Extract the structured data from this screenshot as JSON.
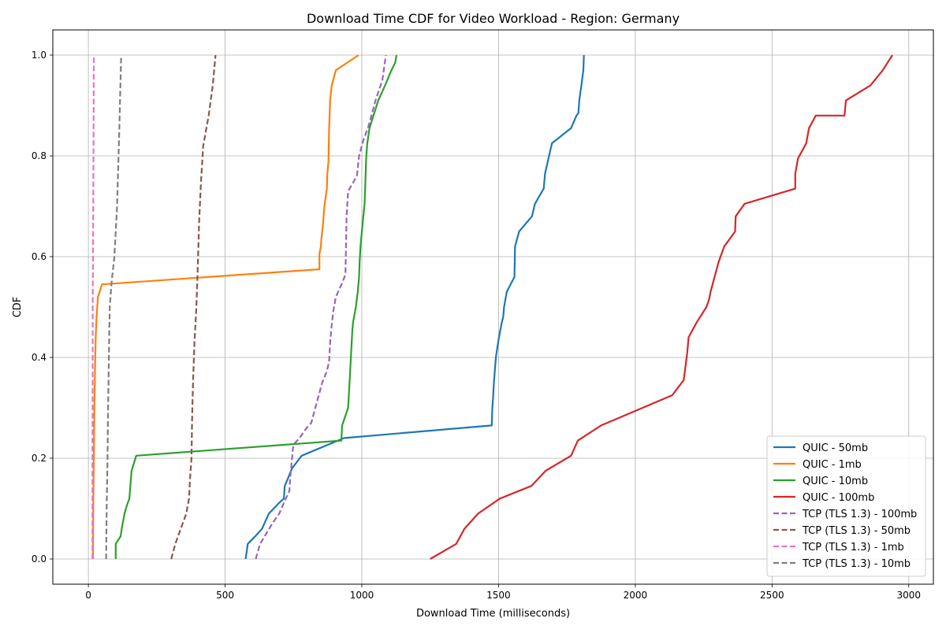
{
  "chart_data": {
    "type": "line",
    "title": "Download Time CDF for Video Workload - Region: Germany",
    "xlabel": "Download Time (milliseconds)",
    "ylabel": "CDF",
    "xlim": [
      -130,
      3090
    ],
    "ylim": [
      -0.05,
      1.05
    ],
    "xticks": [
      0,
      500,
      1000,
      1500,
      2000,
      2500,
      3000
    ],
    "yticks": [
      0.0,
      0.2,
      0.4,
      0.6,
      0.8,
      1.0
    ],
    "xtick_labels": [
      "0",
      "500",
      "1000",
      "1500",
      "2000",
      "2500",
      "3000"
    ],
    "ytick_labels": [
      "0.0",
      "0.2",
      "0.4",
      "0.6",
      "0.8",
      "1.0"
    ],
    "grid": true,
    "legend_position": "lower-right",
    "series": [
      {
        "name": "QUIC - 50mb",
        "color": "#1f77b4",
        "style": "solid",
        "x": [
          575,
          583,
          610,
          635,
          660,
          695,
          715,
          718,
          730,
          745,
          780,
          935,
          1475,
          1477,
          1480,
          1483,
          1490,
          1500,
          1505,
          1512,
          1517,
          1520,
          1530,
          1558,
          1560,
          1575,
          1622,
          1633,
          1665,
          1670,
          1695,
          1765,
          1785,
          1792,
          1795,
          1803,
          1810,
          1812
        ],
        "y": [
          0.0,
          0.03,
          0.045,
          0.06,
          0.09,
          0.11,
          0.12,
          0.145,
          0.16,
          0.18,
          0.205,
          0.24,
          0.265,
          0.3,
          0.32,
          0.35,
          0.4,
          0.435,
          0.45,
          0.47,
          0.48,
          0.5,
          0.53,
          0.56,
          0.62,
          0.65,
          0.68,
          0.705,
          0.735,
          0.765,
          0.825,
          0.855,
          0.88,
          0.885,
          0.91,
          0.94,
          0.97,
          1.0
        ]
      },
      {
        "name": "QUIC - 1mb",
        "color": "#ff7f0e",
        "style": "solid",
        "x": [
          17,
          17,
          18,
          20,
          22,
          25,
          27,
          30,
          35,
          50,
          845,
          845,
          850,
          852,
          858,
          863,
          872,
          874,
          878,
          880,
          884,
          890,
          905,
          988
        ],
        "y": [
          0.0,
          0.03,
          0.1,
          0.2,
          0.3,
          0.4,
          0.445,
          0.48,
          0.52,
          0.545,
          0.575,
          0.605,
          0.62,
          0.635,
          0.665,
          0.7,
          0.735,
          0.765,
          0.79,
          0.85,
          0.91,
          0.94,
          0.97,
          1.0
        ]
      },
      {
        "name": "QUIC - 10mb",
        "color": "#2ca02c",
        "style": "solid",
        "x": [
          100,
          100,
          118,
          122,
          132,
          140,
          150,
          158,
          175,
          925,
          928,
          950,
          955,
          960,
          965,
          968,
          978,
          985,
          990,
          992,
          995,
          1000,
          1010,
          1012,
          1014,
          1016,
          1020,
          1028,
          1060,
          1085,
          1108,
          1122,
          1127
        ],
        "y": [
          0.0,
          0.03,
          0.045,
          0.06,
          0.09,
          0.105,
          0.12,
          0.175,
          0.205,
          0.235,
          0.265,
          0.3,
          0.35,
          0.4,
          0.45,
          0.47,
          0.5,
          0.53,
          0.56,
          0.59,
          0.62,
          0.65,
          0.705,
          0.735,
          0.765,
          0.795,
          0.825,
          0.855,
          0.91,
          0.94,
          0.97,
          0.985,
          1.0
        ]
      },
      {
        "name": "QUIC - 100mb",
        "color": "#d62728",
        "style": "solid",
        "x": [
          1250,
          1345,
          1375,
          1425,
          1505,
          1620,
          1672,
          1765,
          1790,
          1875,
          2135,
          2177,
          2190,
          2195,
          2225,
          2260,
          2270,
          2275,
          2290,
          2305,
          2325,
          2365,
          2367,
          2400,
          2585,
          2585,
          2595,
          2625,
          2635,
          2660,
          2765,
          2770,
          2860,
          2905,
          2940
        ],
        "y": [
          0.0,
          0.03,
          0.06,
          0.09,
          0.12,
          0.145,
          0.175,
          0.205,
          0.235,
          0.265,
          0.325,
          0.355,
          0.41,
          0.44,
          0.47,
          0.5,
          0.515,
          0.53,
          0.56,
          0.59,
          0.62,
          0.65,
          0.68,
          0.705,
          0.735,
          0.765,
          0.795,
          0.825,
          0.855,
          0.88,
          0.88,
          0.91,
          0.94,
          0.97,
          1.0
        ]
      },
      {
        "name": "TCP (TLS 1.3) - 100mb",
        "color": "#9467bd",
        "style": "dashed",
        "x": [
          612,
          628,
          650,
          672,
          698,
          722,
          735,
          738,
          748,
          755,
          772,
          798,
          815,
          840,
          855,
          870,
          880,
          884,
          889,
          895,
          905,
          930,
          940,
          942,
          944,
          950,
          982,
          990,
          1005,
          1025,
          1040,
          1050,
          1075,
          1088
        ],
        "y": [
          0.0,
          0.03,
          0.05,
          0.07,
          0.09,
          0.12,
          0.135,
          0.16,
          0.22,
          0.23,
          0.24,
          0.26,
          0.27,
          0.32,
          0.35,
          0.37,
          0.39,
          0.43,
          0.46,
          0.49,
          0.52,
          0.55,
          0.565,
          0.62,
          0.68,
          0.73,
          0.76,
          0.8,
          0.83,
          0.86,
          0.89,
          0.91,
          0.95,
          1.0
        ]
      },
      {
        "name": "TCP (TLS 1.3) - 50mb",
        "color": "#8c564b",
        "style": "dashed",
        "x": [
          303,
          318,
          338,
          358,
          368,
          372,
          377,
          379,
          381,
          384,
          388,
          395,
          400,
          405,
          412,
          420,
          440,
          455,
          465
        ],
        "y": [
          0.0,
          0.03,
          0.06,
          0.09,
          0.12,
          0.16,
          0.2,
          0.27,
          0.32,
          0.37,
          0.43,
          0.5,
          0.58,
          0.67,
          0.75,
          0.82,
          0.88,
          0.94,
          1.0
        ]
      },
      {
        "name": "TCP (TLS 1.3) - 1mb",
        "color": "#e377c2",
        "style": "dashed",
        "x": [
          15,
          15,
          15,
          16,
          16,
          17,
          18,
          19,
          20
        ],
        "y": [
          0.0,
          0.1,
          0.2,
          0.4,
          0.5,
          0.6,
          0.7,
          0.85,
          1.0
        ]
      },
      {
        "name": "TCP (TLS 1.3) - 10mb",
        "color": "#7f7f7f",
        "style": "dashed",
        "x": [
          65,
          67,
          70,
          72,
          75,
          78,
          85,
          95,
          105,
          113,
          120
        ],
        "y": [
          0.0,
          0.1,
          0.2,
          0.3,
          0.4,
          0.5,
          0.55,
          0.6,
          0.7,
          0.85,
          1.0
        ]
      }
    ]
  }
}
